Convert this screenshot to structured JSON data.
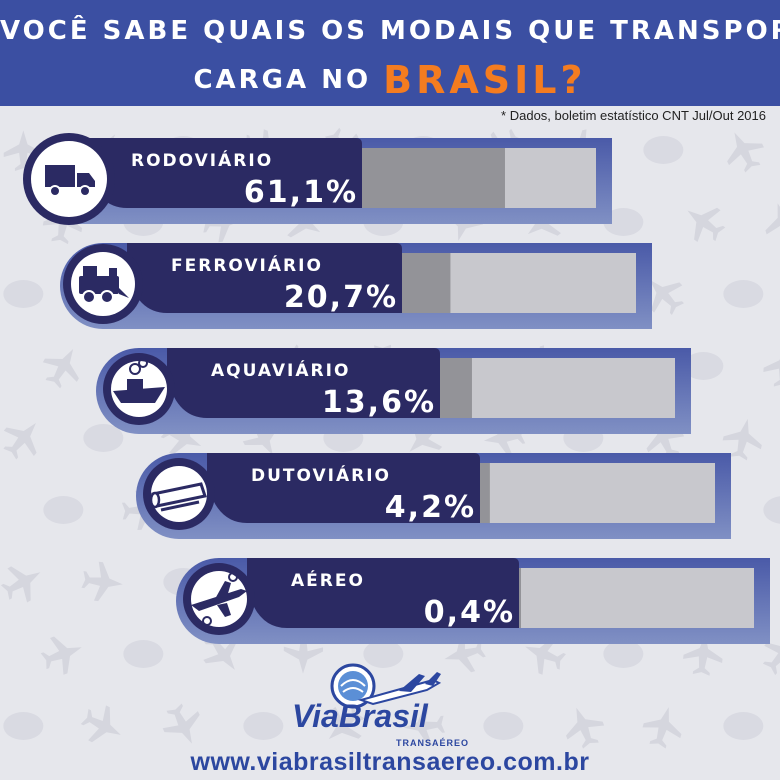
{
  "header": {
    "title_line1": "VOCÊ SABE QUAIS OS MODAIS QUE TRANSPORTAM MAIS",
    "title_line2_prefix": "CARGA NO",
    "title_line2_highlight": "BRASIL?"
  },
  "source_note": "* Dados, boletim estatístico CNT Jul/Out 2016",
  "chart_data": {
    "type": "bar",
    "orientation": "horizontal",
    "categories": [
      "RODOVIÁRIO",
      "FERROVIÁRIO",
      "AQUAVIÁRIO",
      "DUTOVIÁRIO",
      "AÉREO"
    ],
    "values": [
      61.1,
      20.7,
      13.6,
      4.2,
      0.4
    ],
    "value_labels": [
      "61,1%",
      "20,7%",
      "13,6%",
      "4,2%",
      "0,4%"
    ],
    "icons": [
      "truck-icon",
      "train-icon",
      "ship-icon",
      "pipeline-icon",
      "airplane-icon"
    ],
    "xlim": [
      0,
      100
    ],
    "unit": "%"
  },
  "footer": {
    "brand": "ViaBrasil",
    "brand_sub": "TRANSAÉREO",
    "website": "www.viabrasiltransaereo.com.br"
  },
  "colors": {
    "header_bg": "#3b4fa2",
    "highlight": "#f47c20",
    "label_panel": "#2b2a63",
    "outer_band_top": "#4a5aa8",
    "outer_band_bottom": "#8090c4",
    "bar_filled": "#939398",
    "bar_track": "#c8c8cd",
    "background": "#e6e7ec"
  }
}
